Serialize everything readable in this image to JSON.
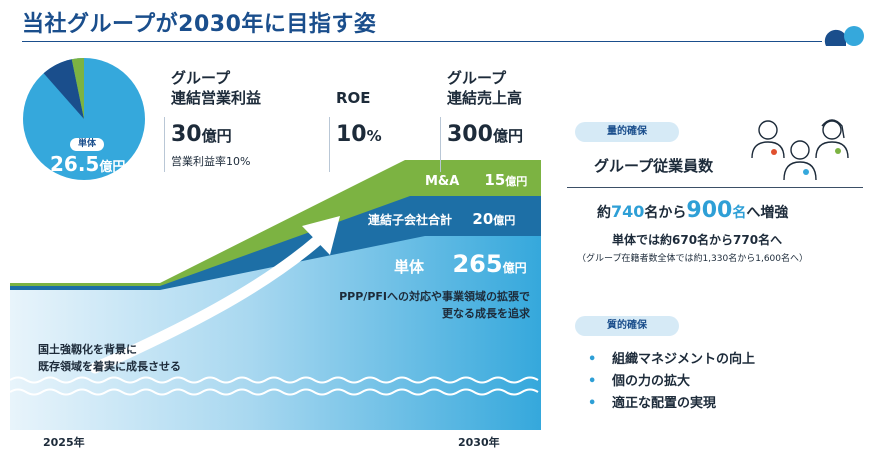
{
  "title": "当社グループが2030年に目指す姿",
  "colors": {
    "dark_blue": "#1a4e8c",
    "mid_blue": "#1d6fa6",
    "light_blue": "#35a8dc",
    "green": "#7cb342",
    "dark_green": "#5f9633"
  },
  "pie": {
    "label": "単体",
    "value": "26.5",
    "unit": "億円",
    "share": 0.885
  },
  "metrics": [
    {
      "label_line1": "グループ",
      "label_line2": "連結営業利益",
      "value": "30",
      "unit": "億円",
      "sub": "営業利益率10%"
    },
    {
      "label_line1": "",
      "label_line2": "ROE",
      "value": "10",
      "unit": "%",
      "sub": ""
    },
    {
      "label_line1": "グループ",
      "label_line2": "連結売上高",
      "value": "300",
      "unit": "億円",
      "sub": ""
    }
  ],
  "bands": {
    "ma": {
      "label": "M&A",
      "value": "15",
      "unit": "億円"
    },
    "subsidiaries": {
      "label": "連結子会社合計",
      "value": "20",
      "unit": "億円"
    },
    "standalone": {
      "label": "単体",
      "value": "265",
      "unit": "億円"
    }
  },
  "growth_note": {
    "line1": "PPP/PFIへの対応や事業領域の拡張で",
    "line2": "更なる成長を追求"
  },
  "base_note": {
    "line1": "国土強靱化を背景に",
    "line2": "既存領域を着実に成長させる"
  },
  "years": {
    "start": "2025年",
    "end": "2030年"
  },
  "quantitative": {
    "badge": "量的確保",
    "heading": "グループ従業員数",
    "main_prefix": "約",
    "main_from": "740",
    "main_mid": "名から",
    "main_to": "900",
    "main_suffix_unit": "名",
    "main_suffix": "へ増強",
    "sub": "単体では約670名から770名へ",
    "note": "（グループ在籍者数全体では約1,330名から1,600名へ）"
  },
  "qualitative": {
    "badge": "質的確保",
    "items": [
      "組織マネジメントの向上",
      "個の力の拡大",
      "適正な配置の実現"
    ]
  }
}
